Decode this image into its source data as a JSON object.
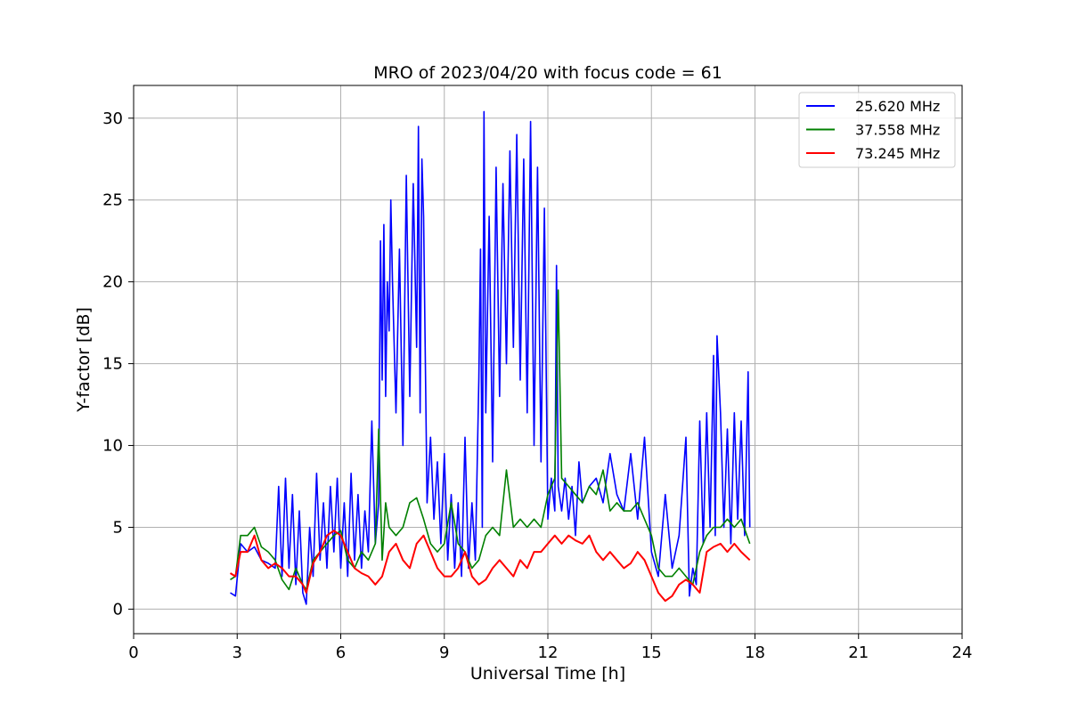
{
  "chart_data": {
    "type": "line",
    "title": "MRO of 2023/04/20 with focus code = 61",
    "xlabel": "Universal Time [h]",
    "ylabel": "Y-factor [dB]",
    "xlim": [
      0,
      24
    ],
    "ylim": [
      -1.5,
      32
    ],
    "xticks": [
      0,
      3,
      6,
      9,
      12,
      15,
      18,
      21,
      24
    ],
    "yticks": [
      0,
      5,
      10,
      15,
      20,
      25,
      30
    ],
    "grid": true,
    "legend_position": "upper right",
    "series": [
      {
        "name": "25.620 MHz",
        "color": "#0000ff",
        "x": [
          2.8,
          2.95,
          3.1,
          3.3,
          3.5,
          3.7,
          3.9,
          4.1,
          4.2,
          4.3,
          4.4,
          4.5,
          4.6,
          4.7,
          4.8,
          4.9,
          5.0,
          5.1,
          5.2,
          5.3,
          5.4,
          5.5,
          5.6,
          5.7,
          5.8,
          5.9,
          6.0,
          6.1,
          6.2,
          6.3,
          6.4,
          6.5,
          6.6,
          6.7,
          6.8,
          6.9,
          7.0,
          7.1,
          7.15,
          7.2,
          7.25,
          7.3,
          7.35,
          7.4,
          7.45,
          7.5,
          7.6,
          7.7,
          7.8,
          7.9,
          8.0,
          8.1,
          8.2,
          8.25,
          8.3,
          8.35,
          8.4,
          8.5,
          8.6,
          8.7,
          8.8,
          8.9,
          9.0,
          9.1,
          9.2,
          9.3,
          9.4,
          9.5,
          9.6,
          9.7,
          9.8,
          9.9,
          10.0,
          10.05,
          10.1,
          10.15,
          10.2,
          10.3,
          10.4,
          10.5,
          10.6,
          10.7,
          10.8,
          10.9,
          11.0,
          11.1,
          11.2,
          11.3,
          11.4,
          11.5,
          11.6,
          11.7,
          11.8,
          11.9,
          12.0,
          12.1,
          12.2,
          12.25,
          12.3,
          12.4,
          12.5,
          12.6,
          12.7,
          12.8,
          12.9,
          13.0,
          13.2,
          13.4,
          13.6,
          13.8,
          14.0,
          14.2,
          14.4,
          14.6,
          14.8,
          15.0,
          15.2,
          15.4,
          15.6,
          15.8,
          16.0,
          16.1,
          16.2,
          16.3,
          16.4,
          16.5,
          16.6,
          16.7,
          16.8,
          16.85,
          16.9,
          17.0,
          17.1,
          17.2,
          17.3,
          17.4,
          17.5,
          17.6,
          17.7,
          17.8,
          17.85
        ],
        "values": [
          1.0,
          0.8,
          4.0,
          3.5,
          3.8,
          3.0,
          2.8,
          2.5,
          7.5,
          2.0,
          8.0,
          2.5,
          7.0,
          1.5,
          6.0,
          1.0,
          0.3,
          5.0,
          2.0,
          8.3,
          3.0,
          6.5,
          2.5,
          7.5,
          3.5,
          8.0,
          2.5,
          6.5,
          2.0,
          8.3,
          3.0,
          7.0,
          2.5,
          6.0,
          3.5,
          11.5,
          4.0,
          6.5,
          22.5,
          14.0,
          23.5,
          13.0,
          20.0,
          17.0,
          25.0,
          20.0,
          12.0,
          22.0,
          10.0,
          26.5,
          13.0,
          26.0,
          16.0,
          29.5,
          12.0,
          27.5,
          24.0,
          6.5,
          10.5,
          5.5,
          9.0,
          4.0,
          9.5,
          3.0,
          7.0,
          2.5,
          6.5,
          2.0,
          10.5,
          2.5,
          6.5,
          3.0,
          14.0,
          22.0,
          5.0,
          30.4,
          12.0,
          24.0,
          9.0,
          27.0,
          13.0,
          26.0,
          15.0,
          28.0,
          16.0,
          29.0,
          14.0,
          27.5,
          12.0,
          29.8,
          10.0,
          27.0,
          9.0,
          24.5,
          5.5,
          8.0,
          6.0,
          21.0,
          7.5,
          6.0,
          8.0,
          5.5,
          7.5,
          4.5,
          9.0,
          6.5,
          7.5,
          8.0,
          6.5,
          9.5,
          7.0,
          6.0,
          9.5,
          5.5,
          10.5,
          3.5,
          2.0,
          7.0,
          2.5,
          4.5,
          10.5,
          0.8,
          2.5,
          1.5,
          11.5,
          4.0,
          12.0,
          5.0,
          15.5,
          4.5,
          16.7,
          12.0,
          5.0,
          11.0,
          4.0,
          12.0,
          5.5,
          11.5,
          4.5,
          14.5,
          5.0
        ]
      },
      {
        "name": "37.558 MHz",
        "color": "#008000",
        "x": [
          2.8,
          2.95,
          3.1,
          3.3,
          3.5,
          3.7,
          3.9,
          4.1,
          4.3,
          4.5,
          4.7,
          4.9,
          5.0,
          5.2,
          5.4,
          5.6,
          5.8,
          6.0,
          6.2,
          6.4,
          6.6,
          6.8,
          7.0,
          7.1,
          7.2,
          7.3,
          7.4,
          7.6,
          7.8,
          8.0,
          8.2,
          8.4,
          8.6,
          8.8,
          9.0,
          9.2,
          9.4,
          9.6,
          9.8,
          10.0,
          10.2,
          10.4,
          10.6,
          10.8,
          11.0,
          11.2,
          11.4,
          11.6,
          11.8,
          12.0,
          12.2,
          12.3,
          12.4,
          12.6,
          12.8,
          13.0,
          13.2,
          13.4,
          13.6,
          13.8,
          14.0,
          14.2,
          14.4,
          14.6,
          14.8,
          15.0,
          15.2,
          15.4,
          15.6,
          15.8,
          16.0,
          16.2,
          16.4,
          16.6,
          16.8,
          17.0,
          17.2,
          17.4,
          17.6,
          17.85
        ],
        "values": [
          1.8,
          2.0,
          4.5,
          4.5,
          5.0,
          3.8,
          3.5,
          3.0,
          1.8,
          1.2,
          2.5,
          1.5,
          1.2,
          3.0,
          3.5,
          4.0,
          4.5,
          4.8,
          3.0,
          2.5,
          3.5,
          3.0,
          4.0,
          11.0,
          3.0,
          6.5,
          5.0,
          4.5,
          5.0,
          6.5,
          6.8,
          5.5,
          4.0,
          3.5,
          4.0,
          6.5,
          4.0,
          3.5,
          2.5,
          3.0,
          4.5,
          5.0,
          4.5,
          8.5,
          5.0,
          5.5,
          5.0,
          5.5,
          5.0,
          7.0,
          8.0,
          19.5,
          8.0,
          7.5,
          7.0,
          6.5,
          7.5,
          7.0,
          8.5,
          6.0,
          6.5,
          6.0,
          6.0,
          6.5,
          5.5,
          4.5,
          2.5,
          2.0,
          2.0,
          2.5,
          2.0,
          1.5,
          3.5,
          4.5,
          5.0,
          5.0,
          5.5,
          5.0,
          5.5,
          4.0
        ]
      },
      {
        "name": "73.245 MHz",
        "color": "#ff0000",
        "x": [
          2.8,
          2.95,
          3.1,
          3.3,
          3.5,
          3.7,
          3.9,
          4.1,
          4.3,
          4.5,
          4.7,
          4.9,
          5.0,
          5.2,
          5.4,
          5.6,
          5.8,
          6.0,
          6.2,
          6.4,
          6.6,
          6.8,
          7.0,
          7.2,
          7.4,
          7.6,
          7.8,
          8.0,
          8.2,
          8.4,
          8.6,
          8.8,
          9.0,
          9.2,
          9.4,
          9.6,
          9.8,
          10.0,
          10.2,
          10.4,
          10.6,
          10.8,
          11.0,
          11.2,
          11.4,
          11.6,
          11.8,
          12.0,
          12.2,
          12.4,
          12.6,
          12.8,
          13.0,
          13.2,
          13.4,
          13.6,
          13.8,
          14.0,
          14.2,
          14.4,
          14.6,
          14.8,
          15.0,
          15.2,
          15.4,
          15.6,
          15.8,
          16.0,
          16.2,
          16.4,
          16.6,
          16.8,
          17.0,
          17.2,
          17.4,
          17.6,
          17.85
        ],
        "values": [
          2.2,
          2.0,
          3.5,
          3.5,
          4.5,
          3.0,
          2.5,
          2.8,
          2.5,
          2.0,
          2.0,
          1.5,
          1.0,
          2.8,
          3.5,
          4.5,
          4.8,
          4.5,
          3.5,
          2.5,
          2.2,
          2.0,
          1.5,
          2.0,
          3.5,
          4.0,
          3.0,
          2.5,
          4.0,
          4.5,
          3.5,
          2.5,
          2.0,
          2.0,
          2.5,
          3.5,
          2.0,
          1.5,
          1.8,
          2.5,
          3.0,
          2.5,
          2.0,
          3.0,
          2.5,
          3.5,
          3.5,
          4.0,
          4.5,
          4.0,
          4.5,
          4.2,
          4.0,
          4.5,
          3.5,
          3.0,
          3.5,
          3.0,
          2.5,
          2.8,
          3.5,
          3.0,
          2.0,
          1.0,
          0.5,
          0.8,
          1.5,
          1.8,
          1.5,
          1.0,
          3.5,
          3.8,
          4.0,
          3.5,
          4.0,
          3.5,
          3.0
        ]
      }
    ]
  }
}
